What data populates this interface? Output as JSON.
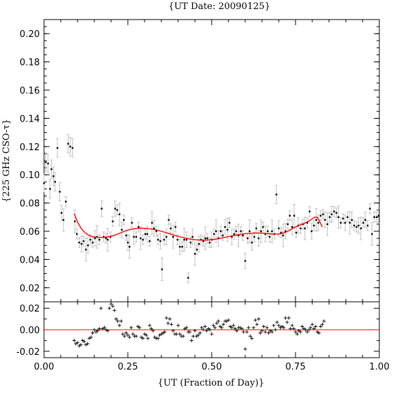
{
  "chart_data": {
    "type": "scatter",
    "title": "{UT Date: 20090125}",
    "xlabel": "{UT (Fraction of Day)}",
    "ylabel": "{225 GHz CSO-τ}",
    "xlim": [
      0.0,
      1.0
    ],
    "ylim": [
      0.01,
      0.21
    ],
    "residual_ylim": [
      -0.026,
      0.026
    ],
    "x_ticks": [
      "0.00",
      "0.25",
      "0.50",
      "0.75",
      "1.00"
    ],
    "y_ticks": [
      "0.02",
      "0.04",
      "0.06",
      "0.08",
      "0.10",
      "0.12",
      "0.14",
      "0.16",
      "0.18",
      "0.20"
    ],
    "residual_ticks": [
      "0.02",
      "0.00",
      "-0.02"
    ],
    "colors": {
      "data": "#000000",
      "errorbar": "#c0c0c0",
      "fit": "#ff0000",
      "axis": "#000000"
    },
    "tau_points": [
      [
        0.0,
        0.094
      ],
      [
        0.005,
        0.109
      ],
      [
        0.012,
        0.108
      ],
      [
        0.018,
        0.09
      ],
      [
        0.022,
        0.104
      ],
      [
        0.028,
        0.099
      ],
      [
        0.033,
        0.095
      ],
      [
        0.04,
        0.119
      ],
      [
        0.047,
        0.088
      ],
      [
        0.052,
        0.073
      ],
      [
        0.058,
        0.068
      ],
      [
        0.065,
        0.081
      ],
      [
        0.072,
        0.122
      ],
      [
        0.078,
        0.12
      ],
      [
        0.085,
        0.119
      ],
      [
        0.092,
        0.067
      ],
      [
        0.098,
        0.058
      ],
      [
        0.105,
        0.052
      ],
      [
        0.112,
        0.051
      ],
      [
        0.118,
        0.053
      ],
      [
        0.125,
        0.047
      ],
      [
        0.131,
        0.05
      ],
      [
        0.138,
        0.054
      ],
      [
        0.145,
        0.052
      ],
      [
        0.152,
        0.055
      ],
      [
        0.158,
        0.056
      ],
      [
        0.165,
        0.054
      ],
      [
        0.172,
        0.076
      ],
      [
        0.178,
        0.056
      ],
      [
        0.185,
        0.055
      ],
      [
        0.19,
        0.054
      ],
      [
        0.198,
        0.056
      ],
      [
        0.205,
        0.067
      ],
      [
        0.212,
        0.076
      ],
      [
        0.218,
        0.075
      ],
      [
        0.225,
        0.072
      ],
      [
        0.232,
        0.061
      ],
      [
        0.238,
        0.068
      ],
      [
        0.245,
        0.057
      ],
      [
        0.25,
        0.052
      ],
      [
        0.255,
        0.049
      ],
      [
        0.262,
        0.066
      ],
      [
        0.268,
        0.056
      ],
      [
        0.275,
        0.056
      ],
      [
        0.282,
        0.063
      ],
      [
        0.288,
        0.055
      ],
      [
        0.295,
        0.054
      ],
      [
        0.302,
        0.058
      ],
      [
        0.308,
        0.058
      ],
      [
        0.315,
        0.053
      ],
      [
        0.322,
        0.066
      ],
      [
        0.328,
        0.062
      ],
      [
        0.335,
        0.06
      ],
      [
        0.34,
        0.054
      ],
      [
        0.347,
        0.053
      ],
      [
        0.352,
        0.033
      ],
      [
        0.358,
        0.054
      ],
      [
        0.365,
        0.056
      ],
      [
        0.372,
        0.068
      ],
      [
        0.378,
        0.062
      ],
      [
        0.385,
        0.056
      ],
      [
        0.392,
        0.063
      ],
      [
        0.398,
        0.054
      ],
      [
        0.405,
        0.049
      ],
      [
        0.412,
        0.049
      ],
      [
        0.418,
        0.054
      ],
      [
        0.425,
        0.054
      ],
      [
        0.43,
        0.027
      ],
      [
        0.437,
        0.052
      ],
      [
        0.443,
        0.056
      ],
      [
        0.45,
        0.044
      ],
      [
        0.456,
        0.047
      ],
      [
        0.462,
        0.051
      ],
      [
        0.468,
        0.054
      ],
      [
        0.475,
        0.053
      ],
      [
        0.481,
        0.055
      ],
      [
        0.487,
        0.055
      ],
      [
        0.494,
        0.052
      ],
      [
        0.5,
        0.054
      ],
      [
        0.507,
        0.058
      ],
      [
        0.513,
        0.06
      ],
      [
        0.52,
        0.055
      ],
      [
        0.527,
        0.06
      ],
      [
        0.533,
        0.057
      ],
      [
        0.54,
        0.063
      ],
      [
        0.547,
        0.061
      ],
      [
        0.553,
        0.066
      ],
      [
        0.56,
        0.056
      ],
      [
        0.567,
        0.058
      ],
      [
        0.573,
        0.06
      ],
      [
        0.58,
        0.057
      ],
      [
        0.587,
        0.06
      ],
      [
        0.593,
        0.057
      ],
      [
        0.6,
        0.039
      ],
      [
        0.607,
        0.055
      ],
      [
        0.613,
        0.06
      ],
      [
        0.62,
        0.052
      ],
      [
        0.627,
        0.056
      ],
      [
        0.633,
        0.062
      ],
      [
        0.64,
        0.055
      ],
      [
        0.647,
        0.06
      ],
      [
        0.653,
        0.063
      ],
      [
        0.66,
        0.058
      ],
      [
        0.667,
        0.06
      ],
      [
        0.673,
        0.056
      ],
      [
        0.68,
        0.06
      ],
      [
        0.687,
        0.058
      ],
      [
        0.693,
        0.086
      ],
      [
        0.7,
        0.062
      ],
      [
        0.707,
        0.059
      ],
      [
        0.713,
        0.057
      ],
      [
        0.72,
        0.06
      ],
      [
        0.727,
        0.065
      ],
      [
        0.733,
        0.071
      ],
      [
        0.74,
        0.063
      ],
      [
        0.746,
        0.071
      ],
      [
        0.752,
        0.059
      ],
      [
        0.758,
        0.064
      ],
      [
        0.765,
        0.062
      ],
      [
        0.772,
        0.065
      ],
      [
        0.778,
        0.062
      ],
      [
        0.785,
        0.066
      ],
      [
        0.792,
        0.074
      ],
      [
        0.798,
        0.06
      ],
      [
        0.805,
        0.064
      ],
      [
        0.812,
        0.068
      ],
      [
        0.818,
        0.066
      ],
      [
        0.825,
        0.071
      ],
      [
        0.832,
        0.072
      ],
      [
        0.838,
        0.068
      ],
      [
        0.845,
        0.065
      ],
      [
        0.852,
        0.07
      ],
      [
        0.858,
        0.072
      ],
      [
        0.865,
        0.074
      ],
      [
        0.872,
        0.073
      ],
      [
        0.878,
        0.07
      ],
      [
        0.885,
        0.066
      ],
      [
        0.892,
        0.069
      ],
      [
        0.898,
        0.066
      ],
      [
        0.905,
        0.07
      ],
      [
        0.912,
        0.066
      ],
      [
        0.918,
        0.068
      ],
      [
        0.925,
        0.064
      ],
      [
        0.932,
        0.063
      ],
      [
        0.938,
        0.064
      ],
      [
        0.945,
        0.062
      ],
      [
        0.952,
        0.066
      ],
      [
        0.958,
        0.068
      ],
      [
        0.965,
        0.064
      ],
      [
        0.972,
        0.076
      ],
      [
        0.978,
        0.058
      ],
      [
        0.985,
        0.07
      ],
      [
        0.992,
        0.07
      ],
      [
        0.998,
        0.071
      ]
    ],
    "fit_curve": [
      [
        0.09,
        0.0725
      ],
      [
        0.1,
        0.0665
      ],
      [
        0.11,
        0.0623
      ],
      [
        0.12,
        0.0595
      ],
      [
        0.13,
        0.0576
      ],
      [
        0.14,
        0.0565
      ],
      [
        0.15,
        0.056
      ],
      [
        0.16,
        0.0557
      ],
      [
        0.17,
        0.0556
      ],
      [
        0.18,
        0.0557
      ],
      [
        0.19,
        0.056
      ],
      [
        0.2,
        0.0565
      ],
      [
        0.21,
        0.0571
      ],
      [
        0.22,
        0.058
      ],
      [
        0.23,
        0.059
      ],
      [
        0.24,
        0.06
      ],
      [
        0.25,
        0.0608
      ],
      [
        0.26,
        0.0614
      ],
      [
        0.27,
        0.0618
      ],
      [
        0.28,
        0.0621
      ],
      [
        0.29,
        0.0622
      ],
      [
        0.3,
        0.0621
      ],
      [
        0.31,
        0.0619
      ],
      [
        0.32,
        0.0616
      ],
      [
        0.33,
        0.0612
      ],
      [
        0.34,
        0.0606
      ],
      [
        0.35,
        0.06
      ],
      [
        0.36,
        0.0593
      ],
      [
        0.37,
        0.0586
      ],
      [
        0.38,
        0.0578
      ],
      [
        0.39,
        0.0571
      ],
      [
        0.4,
        0.0564
      ],
      [
        0.41,
        0.0558
      ],
      [
        0.42,
        0.0552
      ],
      [
        0.43,
        0.0547
      ],
      [
        0.44,
        0.0543
      ],
      [
        0.45,
        0.054
      ],
      [
        0.46,
        0.0538
      ],
      [
        0.47,
        0.0537
      ],
      [
        0.48,
        0.0537
      ],
      [
        0.49,
        0.0538
      ],
      [
        0.5,
        0.054
      ],
      [
        0.51,
        0.0543
      ],
      [
        0.52,
        0.0547
      ],
      [
        0.53,
        0.0552
      ],
      [
        0.54,
        0.0557
      ],
      [
        0.55,
        0.0562
      ],
      [
        0.56,
        0.0567
      ],
      [
        0.57,
        0.0572
      ],
      [
        0.58,
        0.0576
      ],
      [
        0.59,
        0.0579
      ],
      [
        0.6,
        0.0582
      ],
      [
        0.61,
        0.0584
      ],
      [
        0.62,
        0.0586
      ],
      [
        0.63,
        0.0587
      ],
      [
        0.64,
        0.0587
      ],
      [
        0.65,
        0.0586
      ],
      [
        0.66,
        0.0584
      ],
      [
        0.67,
        0.0582
      ],
      [
        0.68,
        0.058
      ],
      [
        0.69,
        0.0579
      ],
      [
        0.7,
        0.058
      ],
      [
        0.71,
        0.0584
      ],
      [
        0.72,
        0.0592
      ],
      [
        0.73,
        0.0604
      ],
      [
        0.74,
        0.0618
      ],
      [
        0.75,
        0.063
      ],
      [
        0.76,
        0.0641
      ],
      [
        0.77,
        0.065
      ],
      [
        0.78,
        0.066
      ],
      [
        0.79,
        0.0672
      ],
      [
        0.8,
        0.0688
      ],
      [
        0.808,
        0.07
      ],
      [
        0.815,
        0.0698
      ],
      [
        0.82,
        0.068
      ],
      [
        0.825,
        0.0655
      ],
      [
        0.83,
        0.063
      ]
    ],
    "residuals": [
      [
        0.09,
        -0.01
      ],
      [
        0.095,
        -0.013
      ],
      [
        0.1,
        -0.012
      ],
      [
        0.105,
        -0.015
      ],
      [
        0.11,
        -0.014
      ],
      [
        0.115,
        -0.01
      ],
      [
        0.12,
        -0.011
      ],
      [
        0.125,
        -0.014
      ],
      [
        0.13,
        -0.013
      ],
      [
        0.135,
        -0.008
      ],
      [
        0.14,
        -0.007
      ],
      [
        0.145,
        -0.003
      ],
      [
        0.15,
        0.0
      ],
      [
        0.155,
        -0.002
      ],
      [
        0.16,
        -0.001
      ],
      [
        0.165,
        0.001
      ],
      [
        0.17,
        0.02
      ],
      [
        0.175,
        0.001
      ],
      [
        0.18,
        0.002
      ],
      [
        0.185,
        0.0
      ],
      [
        0.19,
        -0.001
      ],
      [
        0.195,
        0.02
      ],
      [
        0.2,
        0.024
      ],
      [
        0.205,
        0.022
      ],
      [
        0.21,
        0.018
      ],
      [
        0.215,
        0.01
      ],
      [
        0.22,
        0.008
      ],
      [
        0.225,
        0.004
      ],
      [
        0.23,
        0.008
      ],
      [
        0.235,
        -0.004
      ],
      [
        0.24,
        -0.006
      ],
      [
        0.245,
        -0.003
      ],
      [
        0.25,
        -0.005
      ],
      [
        0.255,
        -0.007
      ],
      [
        0.26,
        0.002
      ],
      [
        0.265,
        -0.004
      ],
      [
        0.27,
        -0.006
      ],
      [
        0.275,
        -0.006
      ],
      [
        0.28,
        0.003
      ],
      [
        0.285,
        0.002
      ],
      [
        0.29,
        -0.007
      ],
      [
        0.295,
        -0.008
      ],
      [
        0.3,
        -0.004
      ],
      [
        0.305,
        -0.005
      ],
      [
        0.31,
        -0.008
      ],
      [
        0.315,
        0.004
      ],
      [
        0.32,
        0.001
      ],
      [
        0.325,
        -0.001
      ],
      [
        0.33,
        -0.007
      ],
      [
        0.335,
        -0.008
      ],
      [
        0.34,
        -0.008
      ],
      [
        0.345,
        -0.005
      ],
      [
        0.35,
        -0.004
      ],
      [
        0.355,
        -0.003
      ],
      [
        0.36,
        -0.002
      ],
      [
        0.365,
        0.011
      ],
      [
        0.37,
        0.006
      ],
      [
        0.375,
        0.01
      ],
      [
        0.38,
        0.005
      ],
      [
        0.385,
        -0.001
      ],
      [
        0.39,
        -0.004
      ],
      [
        0.395,
        -0.004
      ],
      [
        0.4,
        0.004
      ],
      [
        0.405,
        -0.004
      ],
      [
        0.41,
        -0.006
      ],
      [
        0.415,
        -0.006
      ],
      [
        0.42,
        0.001
      ],
      [
        0.425,
        0.002
      ],
      [
        0.43,
        -0.002
      ],
      [
        0.435,
        -0.002
      ],
      [
        0.44,
        -0.01
      ],
      [
        0.445,
        -0.006
      ],
      [
        0.45,
        -0.001
      ],
      [
        0.455,
        -0.006
      ],
      [
        0.46,
        -0.005
      ],
      [
        0.465,
        -0.003
      ],
      [
        0.47,
        0.002
      ],
      [
        0.475,
        0.0
      ],
      [
        0.48,
        0.003
      ],
      [
        0.485,
        -0.001
      ],
      [
        0.49,
        0.001
      ],
      [
        0.495,
        0.0
      ],
      [
        0.5,
        -0.004
      ],
      [
        0.505,
        0.004
      ],
      [
        0.51,
        0.002
      ],
      [
        0.515,
        0.006
      ],
      [
        0.52,
        0.008
      ],
      [
        0.525,
        0.003
      ],
      [
        0.53,
        0.002
      ],
      [
        0.535,
        0.005
      ],
      [
        0.54,
        0.008
      ],
      [
        0.545,
        0.008
      ],
      [
        0.55,
        0.009
      ],
      [
        0.555,
        0.003
      ],
      [
        0.56,
        0.002
      ],
      [
        0.565,
        0.004
      ],
      [
        0.57,
        0.001
      ],
      [
        0.575,
        -0.001
      ],
      [
        0.58,
        0.002
      ],
      [
        0.585,
        0.002
      ],
      [
        0.59,
        0.001
      ],
      [
        0.595,
        -0.002
      ],
      [
        0.6,
        -0.018
      ],
      [
        0.605,
        -0.002
      ],
      [
        0.61,
        0.002
      ],
      [
        0.615,
        -0.006
      ],
      [
        0.62,
        -0.008
      ],
      [
        0.625,
        0.002
      ],
      [
        0.63,
        0.009
      ],
      [
        0.635,
        0.005
      ],
      [
        0.64,
        0.01
      ],
      [
        0.645,
        -0.003
      ],
      [
        0.65,
        -0.001
      ],
      [
        0.655,
        0.003
      ],
      [
        0.66,
        -0.002
      ],
      [
        0.665,
        0.002
      ],
      [
        0.67,
        -0.003
      ],
      [
        0.675,
        -0.001
      ],
      [
        0.68,
        -0.002
      ],
      [
        0.685,
        0.004
      ],
      [
        0.69,
        0.0
      ],
      [
        0.695,
        0.007
      ],
      [
        0.7,
        0.004
      ],
      [
        0.705,
        0.002
      ],
      [
        0.71,
        0.003
      ],
      [
        0.715,
        0.002
      ],
      [
        0.72,
        0.011
      ],
      [
        0.725,
        0.007
      ],
      [
        0.73,
        0.011
      ],
      [
        0.735,
        0.001
      ],
      [
        0.74,
        0.004
      ],
      [
        0.745,
        0.001
      ],
      [
        0.75,
        -0.002
      ],
      [
        0.755,
        -0.004
      ],
      [
        0.76,
        -0.001
      ],
      [
        0.765,
        -0.002
      ],
      [
        0.77,
        0.003
      ],
      [
        0.775,
        0.001
      ],
      [
        0.78,
        0.0
      ],
      [
        0.785,
        -0.002
      ],
      [
        0.79,
        0.0
      ],
      [
        0.795,
        0.002
      ],
      [
        0.8,
        0.005
      ],
      [
        0.805,
        0.001
      ],
      [
        0.81,
        0.003
      ],
      [
        0.815,
        -0.002
      ],
      [
        0.82,
        -0.003
      ],
      [
        0.825,
        0.003
      ],
      [
        0.83,
        0.005
      ],
      [
        0.835,
        0.008
      ]
    ]
  }
}
